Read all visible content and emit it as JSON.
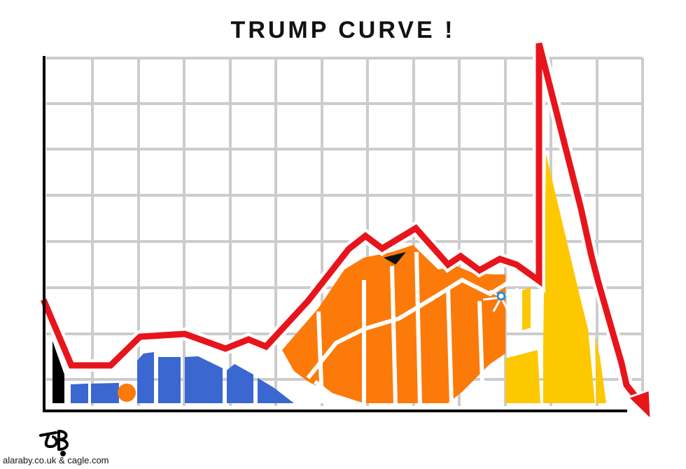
{
  "cartoon": {
    "title": "TRUMP CURVE !",
    "credit": "alaraby.co.uk & cagle.com",
    "signature": "OB"
  },
  "colors": {
    "trend_line": "#e8141b",
    "blue_figure": "#3a67d0",
    "orange_figure": "#fc7a0a",
    "yellow_figure": "#fdc800",
    "grid": "#cccccc",
    "axis": "#000000"
  }
}
